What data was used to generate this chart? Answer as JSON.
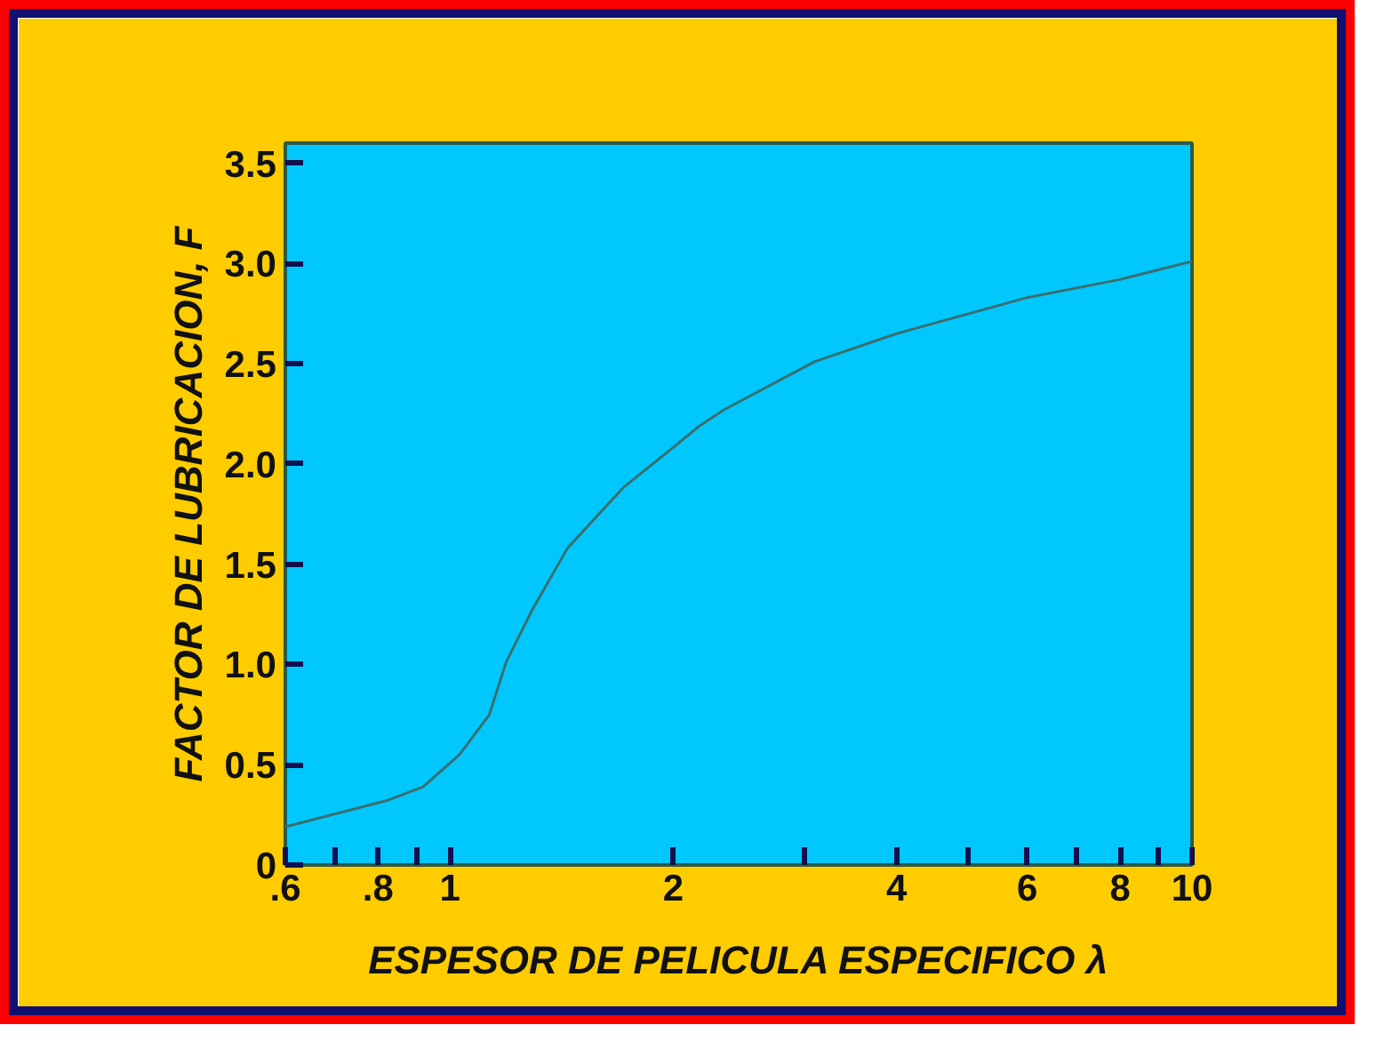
{
  "chart_data": {
    "type": "line",
    "xlabel": "ESPESOR DE PELICULA ESPECIFICO λ",
    "ylabel": "FACTOR DE LUBRICACION, F",
    "log": "x",
    "xlim": [
      0.6,
      10
    ],
    "ylim": [
      0,
      3.6
    ],
    "xticks": [
      {
        "value": 0.6,
        "label": ".6"
      },
      {
        "value": 0.7,
        "label": null
      },
      {
        "value": 0.8,
        "label": ".8"
      },
      {
        "value": 0.9,
        "label": null
      },
      1,
      2,
      {
        "value": 3,
        "label": null
      },
      4,
      {
        "value": 5,
        "label": null
      },
      6,
      {
        "value": 7,
        "label": null
      },
      8,
      {
        "value": 9,
        "label": null
      },
      10
    ],
    "yticks": [
      0,
      0.5,
      {
        "value": 1,
        "label": "1.0"
      },
      1.5,
      {
        "value": 2,
        "label": "2.0"
      },
      2.5,
      {
        "value": 3,
        "label": "3.0"
      },
      3.5
    ],
    "grid": false,
    "marker": "none",
    "line_style": "solid",
    "series": [
      {
        "color": "#3a6e6e",
        "x": [
          0.6,
          0.82,
          0.92,
          1.03,
          1.13,
          1.19,
          1.29,
          1.44,
          1.71,
          1.98,
          2.17,
          2.34,
          3.1,
          4.0,
          6.0,
          8.0,
          10
        ],
        "values": [
          0.19,
          0.32,
          0.39,
          0.55,
          0.75,
          1.01,
          1.27,
          1.58,
          1.88,
          2.07,
          2.19,
          2.27,
          2.51,
          2.65,
          2.83,
          2.92,
          3.01
        ]
      }
    ]
  }
}
